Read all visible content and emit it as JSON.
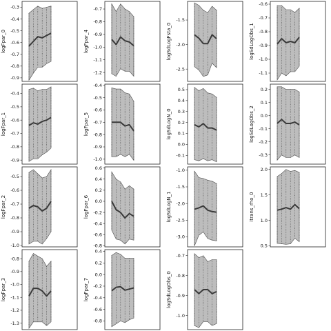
{
  "chart_data": [
    {
      "type": "line",
      "ylabel": "logFpar_0",
      "ylim": [
        -0.93,
        -0.25
      ],
      "yticks": [
        -0.9,
        -0.8,
        -0.7,
        -0.6,
        -0.5,
        -0.4,
        -0.3
      ],
      "yticklabels": [
        "-0.9",
        "-0.8",
        "-0.7",
        "-0.6",
        "-0.5",
        "-0.4",
        "-0.3"
      ],
      "values": [
        -0.63,
        -0.59,
        -0.55,
        -0.56,
        -0.54,
        -0.52
      ],
      "upper": [
        -0.35,
        -0.32,
        -0.29,
        -0.31,
        -0.3,
        -0.29
      ],
      "lower": [
        -0.92,
        -0.86,
        -0.81,
        -0.81,
        -0.78,
        -0.76
      ]
    },
    {
      "type": "line",
      "ylabel": "logFpar_4",
      "ylim": [
        -1.27,
        -0.64
      ],
      "yticks": [
        -1.2,
        -1.1,
        -1.0,
        -0.9,
        -0.8,
        -0.7
      ],
      "yticklabels": [
        "-1.2",
        "-1.1",
        "-1.0",
        "-0.9",
        "-0.8",
        "-0.7"
      ],
      "values": [
        -0.94,
        -0.98,
        -0.92,
        -0.95,
        -0.96,
        -0.99
      ],
      "upper": [
        -0.66,
        -0.72,
        -0.66,
        -0.7,
        -0.72,
        -0.76
      ],
      "lower": [
        -1.21,
        -1.23,
        -1.17,
        -1.19,
        -1.19,
        -1.23
      ]
    },
    {
      "type": "line",
      "ylabel": "logSdLogFsta_0",
      "ylim": [
        -2.75,
        -1.12
      ],
      "yticks": [
        -2.5,
        -2.0,
        -1.5
      ],
      "yticklabels": [
        "-2.5",
        "-2.0",
        "-1.5"
      ],
      "values": [
        -1.8,
        -1.87,
        -1.98,
        -1.98,
        -1.8,
        -1.88
      ],
      "upper": [
        -1.15,
        -1.2,
        -1.3,
        -1.35,
        -1.22,
        -1.3
      ],
      "lower": [
        -2.45,
        -2.52,
        -2.65,
        -2.62,
        -2.38,
        -2.47
      ]
    },
    {
      "type": "line",
      "ylabel": "logSdLogObs_1",
      "ylim": [
        -1.16,
        -0.58
      ],
      "yticks": [
        -1.1,
        -1.0,
        -0.9,
        -0.8,
        -0.7,
        -0.6
      ],
      "yticklabels": [
        "-1.1",
        "-1.0",
        "-0.9",
        "-0.8",
        "-0.7",
        "-0.6"
      ],
      "values": [
        -0.89,
        -0.85,
        -0.88,
        -0.87,
        -0.88,
        -0.84
      ],
      "upper": [
        -0.61,
        -0.61,
        -0.64,
        -0.64,
        -0.66,
        -0.63
      ],
      "lower": [
        -1.15,
        -1.1,
        -1.12,
        -1.09,
        -1.09,
        -1.05
      ]
    },
    {
      "type": "line",
      "ylabel": "logFpar_1",
      "ylim": [
        -0.93,
        -0.33
      ],
      "yticks": [
        -0.9,
        -0.8,
        -0.7,
        -0.6,
        -0.5,
        -0.4
      ],
      "yticklabels": [
        "-0.9",
        "-0.8",
        "-0.7",
        "-0.6",
        "-0.5",
        "-0.4"
      ],
      "values": [
        -0.64,
        -0.62,
        -0.63,
        -0.61,
        -0.6,
        -0.58
      ],
      "upper": [
        -0.37,
        -0.36,
        -0.38,
        -0.37,
        -0.37,
        -0.35
      ],
      "lower": [
        -0.91,
        -0.89,
        -0.89,
        -0.86,
        -0.84,
        -0.81
      ]
    },
    {
      "type": "line",
      "ylabel": "logFpar_5",
      "ylim": [
        -1.04,
        -0.39
      ],
      "yticks": [
        -1.0,
        -0.9,
        -0.8,
        -0.7,
        -0.6,
        -0.5,
        -0.4
      ],
      "yticklabels": [
        "-1.0",
        "-0.9",
        "-0.8",
        "-0.7",
        "-0.6",
        "-0.5",
        "-0.4"
      ],
      "values": [
        -0.7,
        -0.7,
        -0.7,
        -0.73,
        -0.72,
        -0.77
      ],
      "upper": [
        -0.42,
        -0.43,
        -0.43,
        -0.46,
        -0.47,
        -0.53
      ],
      "lower": [
        -0.98,
        -0.98,
        -0.96,
        -0.98,
        -0.96,
        -1.01
      ]
    },
    {
      "type": "line",
      "ylabel": "logSdLogN_0",
      "ylim": [
        -0.18,
        0.55
      ],
      "yticks": [
        -0.1,
        0.0,
        0.1,
        0.2,
        0.3,
        0.4,
        0.5
      ],
      "yticklabels": [
        "-0.1",
        "0.0",
        "0.1",
        "0.2",
        "0.3",
        "0.4",
        "0.5"
      ],
      "values": [
        0.18,
        0.16,
        0.19,
        0.15,
        0.15,
        0.13
      ],
      "upper": [
        0.52,
        0.49,
        0.51,
        0.47,
        0.46,
        0.43
      ],
      "lower": [
        -0.14,
        -0.15,
        -0.13,
        -0.15,
        -0.14,
        -0.16
      ]
    },
    {
      "type": "line",
      "ylabel": "logSdLogObs_2",
      "ylim": [
        -0.37,
        0.24
      ],
      "yticks": [
        -0.3,
        -0.2,
        -0.1,
        0.0,
        0.1,
        0.2
      ],
      "yticklabels": [
        "-0.3",
        "-0.2",
        "-0.1",
        "0.0",
        "0.1",
        "0.2"
      ],
      "values": [
        -0.06,
        -0.03,
        -0.06,
        -0.06,
        -0.05,
        -0.07
      ],
      "upper": [
        0.22,
        0.22,
        0.2,
        0.2,
        0.2,
        0.18
      ],
      "lower": [
        -0.34,
        -0.3,
        -0.32,
        -0.32,
        -0.3,
        -0.32
      ]
    },
    {
      "type": "line",
      "ylabel": "logFpar_2",
      "ylim": [
        -1.01,
        -0.43
      ],
      "yticks": [
        -1.0,
        -0.9,
        -0.8,
        -0.7,
        -0.6,
        -0.5
      ],
      "yticklabels": [
        "-1.0",
        "-0.9",
        "-0.8",
        "-0.7",
        "-0.6",
        "-0.5"
      ],
      "values": [
        -0.73,
        -0.71,
        -0.72,
        -0.75,
        -0.73,
        -0.68
      ],
      "upper": [
        -0.47,
        -0.45,
        -0.48,
        -0.51,
        -0.5,
        -0.45
      ],
      "lower": [
        -0.99,
        -0.97,
        -0.97,
        -0.99,
        -0.95,
        -0.9
      ]
    },
    {
      "type": "line",
      "ylabel": "logFpar_6",
      "ylim": [
        -0.82,
        0.62
      ],
      "yticks": [
        -0.8,
        -0.6,
        -0.4,
        -0.2,
        0.0,
        0.2,
        0.4,
        0.6
      ],
      "yticklabels": [
        "-0.8",
        "-0.6",
        "-0.4",
        "-0.2",
        "0.0",
        "0.2",
        "0.4",
        "0.6"
      ],
      "values": [
        0.0,
        -0.15,
        -0.2,
        -0.3,
        -0.22,
        -0.27
      ],
      "upper": [
        0.53,
        0.4,
        0.35,
        0.22,
        0.28,
        0.22
      ],
      "lower": [
        -0.52,
        -0.68,
        -0.7,
        -0.77,
        -0.68,
        -0.7
      ]
    },
    {
      "type": "line",
      "ylabel": "logSdLogN_1",
      "ylim": [
        -3.3,
        -0.9
      ],
      "yticks": [
        -3.0,
        -2.5,
        -2.0,
        -1.5,
        -1.0
      ],
      "yticklabels": [
        "-3.0",
        "-2.5",
        "-2.0",
        "-1.5",
        "-1.0"
      ],
      "values": [
        -2.17,
        -2.13,
        -2.07,
        -2.2,
        -2.24,
        -2.26
      ],
      "upper": [
        -1.03,
        -1.22,
        -1.25,
        -1.3,
        -1.33,
        -1.4
      ],
      "lower": [
        -3.27,
        -2.95,
        -2.85,
        -3.05,
        -3.1,
        -3.12
      ]
    },
    {
      "type": "line",
      "ylabel": "itrans_rho_0",
      "ylim": [
        0.48,
        2.05
      ],
      "yticks": [
        0.5,
        1.0,
        1.5,
        2.0
      ],
      "yticklabels": [
        "0.5",
        "1.0",
        "1.5",
        "2.0"
      ],
      "values": [
        1.2,
        1.22,
        1.25,
        1.22,
        1.31,
        1.23
      ],
      "upper": [
        1.86,
        1.92,
        2.0,
        1.96,
        1.98,
        1.94
      ],
      "lower": [
        0.55,
        0.54,
        0.53,
        0.54,
        0.65,
        0.58
      ]
    },
    {
      "type": "line",
      "ylabel": "logFpar_3",
      "ylim": [
        -1.35,
        -0.73
      ],
      "yticks": [
        -1.3,
        -1.2,
        -1.1,
        -1.0,
        -0.9,
        -0.8
      ],
      "yticklabels": [
        "-1.3",
        "-1.2",
        "-1.1",
        "-1.0",
        "-0.9",
        "-0.8"
      ],
      "values": [
        -1.09,
        -1.03,
        -1.03,
        -1.05,
        -1.09,
        -1.05
      ],
      "upper": [
        -0.82,
        -0.76,
        -0.78,
        -0.8,
        -0.86,
        -0.82
      ],
      "lower": [
        -1.34,
        -1.29,
        -1.29,
        -1.29,
        -1.32,
        -1.29
      ]
    },
    {
      "type": "line",
      "ylabel": "logFpar_7",
      "ylim": [
        -0.95,
        0.43
      ],
      "yticks": [
        -0.8,
        -0.6,
        -0.4,
        -0.2,
        0.0,
        0.2,
        0.4
      ],
      "yticklabels": [
        "-0.8",
        "-0.6",
        "-0.4",
        "-0.2",
        "0.0",
        "0.2",
        "0.4"
      ],
      "values": [
        -0.28,
        -0.22,
        -0.21,
        -0.27,
        -0.25,
        -0.23
      ],
      "upper": [
        0.33,
        0.38,
        0.35,
        0.28,
        0.28,
        0.28
      ],
      "lower": [
        -0.9,
        -0.85,
        -0.8,
        -0.83,
        -0.78,
        -0.75
      ]
    },
    {
      "type": "line",
      "ylabel": "logSdLogObs_0",
      "ylim": [
        -1.07,
        -0.67
      ],
      "yticks": [
        -1.0,
        -0.9,
        -0.8,
        -0.7
      ],
      "yticklabels": [
        "-1.0",
        "-0.9",
        "-0.8",
        "-0.7"
      ],
      "values": [
        -0.87,
        -0.89,
        -0.87,
        -0.87,
        -0.89,
        -0.88
      ],
      "upper": [
        -0.69,
        -0.71,
        -0.7,
        -0.73,
        -0.72,
        -0.72
      ],
      "lower": [
        -1.05,
        -1.06,
        -1.03,
        -1.03,
        -1.05,
        -1.04
      ]
    }
  ]
}
